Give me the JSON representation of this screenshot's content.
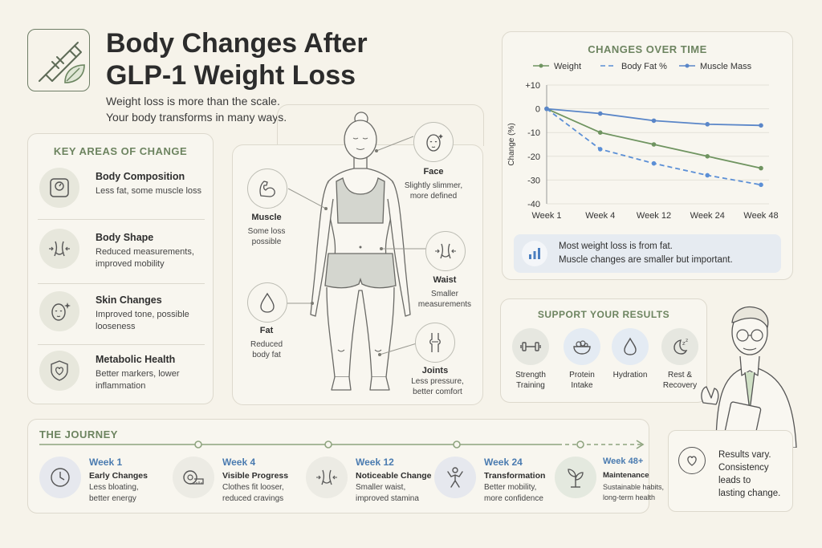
{
  "header": {
    "title_line1": "Body Changes After",
    "title_line2": "GLP-1 Weight Loss",
    "subtitle_line1": "Weight loss is more than the scale.",
    "subtitle_line2": "Your body transforms in many ways."
  },
  "key_areas": {
    "title": "KEY AREAS OF CHANGE",
    "items": [
      {
        "title": "Body Composition",
        "desc": "Less fat, some muscle loss",
        "icon": "scale-icon"
      },
      {
        "title": "Body Shape",
        "desc": "Reduced measurements, improved mobility",
        "icon": "waist-icon"
      },
      {
        "title": "Skin Changes",
        "desc": "Improved tone, possible looseness",
        "icon": "face-sparkle-icon"
      },
      {
        "title": "Metabolic Health",
        "desc": "Better markers, lower inflammation",
        "icon": "heart-shield-icon"
      }
    ]
  },
  "body_figure": {
    "callouts": {
      "face": {
        "title": "Face",
        "desc_line1": "Slightly slimmer,",
        "desc_line2": "more defined"
      },
      "muscle": {
        "title": "Muscle",
        "desc_line1": "Some loss",
        "desc_line2": "possible"
      },
      "waist": {
        "title": "Waist",
        "desc_line1": "Smaller",
        "desc_line2": "measurements"
      },
      "fat": {
        "title": "Fat",
        "desc_line1": "Reduced",
        "desc_line2": "body fat"
      },
      "joints": {
        "title": "Joints",
        "desc_line1": "Less pressure,",
        "desc_line2": "better comfort"
      }
    }
  },
  "chart": {
    "title": "CHANGES OVER TIME",
    "note_line1": "Most weight loss is from fat.",
    "note_line2": "Muscle changes are smaller but important.",
    "colors": {
      "weight": "#6f9460",
      "body_fat": "#5b8fd6",
      "muscle": "#5a86c8"
    }
  },
  "chart_data": {
    "type": "line",
    "title": "CHANGES OVER TIME",
    "xlabel": "",
    "ylabel": "Change (%)",
    "categories": [
      "Week 1",
      "Week 4",
      "Week 12",
      "Week 24",
      "Week 48"
    ],
    "ylim": [
      -40,
      10
    ],
    "yticks": [
      "+10",
      "0",
      "-10",
      "-20",
      "-30",
      "-40"
    ],
    "grid": true,
    "legend": "top",
    "series": [
      {
        "name": "Weight",
        "values": [
          0,
          -10,
          -15,
          -20,
          -25
        ],
        "style": "solid"
      },
      {
        "name": "Body Fat %",
        "values": [
          0,
          -17,
          -23,
          -28,
          -32
        ],
        "style": "dashed"
      },
      {
        "name": "Muscle Mass",
        "values": [
          0,
          -2,
          -5,
          -6.5,
          -7
        ],
        "style": "solid"
      }
    ]
  },
  "support": {
    "title": "SUPPORT YOUR RESULTS",
    "items": [
      {
        "line1": "Strength",
        "line2": "Training",
        "icon": "dumbbell-icon"
      },
      {
        "line1": "Protein",
        "line2": "Intake",
        "icon": "food-bowl-icon"
      },
      {
        "line1": "Hydration",
        "line2": "",
        "icon": "water-drop-icon"
      },
      {
        "line1": "Rest &",
        "line2": "Recovery",
        "icon": "moon-sleep-icon"
      }
    ]
  },
  "journey": {
    "title": "THE JOURNEY",
    "items": [
      {
        "week": "Week 1",
        "name": "Early Changes",
        "desc_line1": "Less bloating,",
        "desc_line2": "better energy",
        "icon": "clock-icon"
      },
      {
        "week": "Week 4",
        "name": "Visible Progress",
        "desc_line1": "Clothes fit looser,",
        "desc_line2": "reduced cravings",
        "icon": "tape-measure-icon"
      },
      {
        "week": "Week 12",
        "name": "Noticeable Change",
        "desc_line1": "Smaller waist,",
        "desc_line2": "improved stamina",
        "icon": "waist-icon"
      },
      {
        "week": "Week 24",
        "name": "Transformation",
        "desc_line1": "Better mobility,",
        "desc_line2": "more confidence",
        "icon": "person-active-icon"
      },
      {
        "week": "Week 48+",
        "name": "Maintenance",
        "desc_line1": "Sustainable habits,",
        "desc_line2": "long-term health",
        "icon": "plant-icon"
      }
    ]
  },
  "note": {
    "line1": "Results vary.",
    "line2": "Consistency",
    "line3": "leads to",
    "line4": "lasting change."
  }
}
